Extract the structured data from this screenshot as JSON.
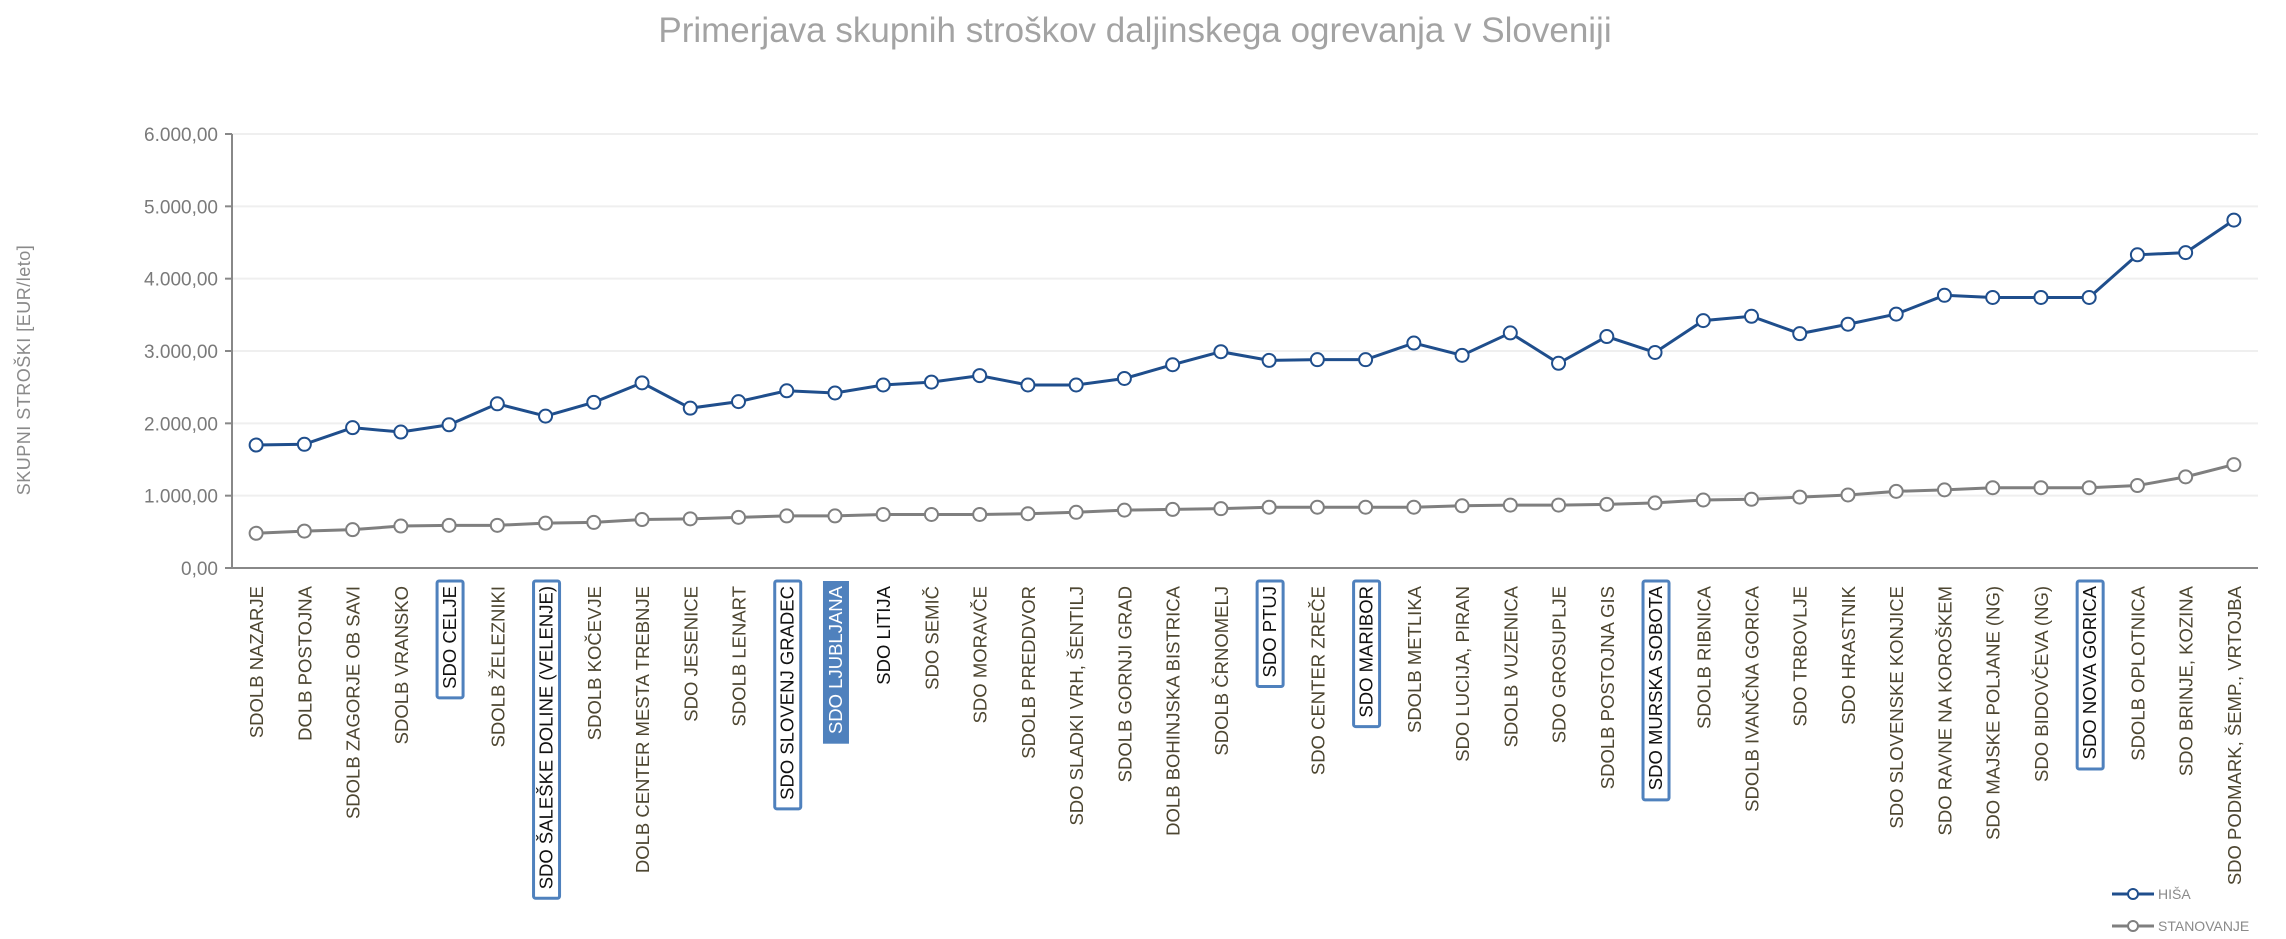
{
  "chart_data": {
    "type": "line",
    "title": "Primerjava skupnih stroškov daljinskega ogrevanja v Sloveniji",
    "xlabel": "",
    "ylabel": "SKUPNI STROŠKI [EUR/leto]",
    "ylim": [
      0,
      6000
    ],
    "yticks": [
      0,
      1000,
      2000,
      3000,
      4000,
      5000,
      6000
    ],
    "ytick_labels": [
      "0,00",
      "1.000,00",
      "2.000,00",
      "3.000,00",
      "4.000,00",
      "5.000,00",
      "6.000,00"
    ],
    "grid": true,
    "legend_position": "bottom-right",
    "categories": [
      "SDOLB NAZARJE",
      "DOLB POSTOJNA",
      "SDOLB ZAGORJE OB SAVI",
      "SDOLB VRANSKO",
      "SDO CELJE",
      "SDOLB ŽELEZNIKI",
      "SDO ŠALEŠKE DOLINE (VELENJE)",
      "SDOLB KOČEVJE",
      "DOLB CENTER MESTA TREBNJE",
      "SDO JESENICE",
      "SDOLB LENART",
      "SDO SLOVENJ GRADEC",
      "SDO LJUBLJANA",
      "SDO LITIJA",
      "SDO SEMIČ",
      "SDO MORAVČE",
      "SDOLB PREDDVOR",
      "SDO SLADKI VRH, ŠENTILJ",
      "SDOLB GORNJI GRAD",
      "DOLB BOHINJSKA BISTRICA",
      "SDOLB ČRNOMELJ",
      "SDO PTUJ",
      "SDO CENTER ZREČE",
      "SDO MARIBOR",
      "SDOLB METLIKA",
      "SDO LUCIJA, PIRAN",
      "SDOLB VUZENICA",
      "SDO GROSUPLJE",
      "SDOLB POSTOJNA GIS",
      "SDO MURSKA SOBOTA",
      "SDOLB RIBNICA",
      "SDOLB IVANČNA GORICA",
      "SDO TRBOVLJE",
      "SDO HRASTNIK",
      "SDO SLOVENSKE KONJICE",
      "SDO RAVNE NA KOROŠKEM",
      "SDO MAJSKE POLJANE  (NG)",
      "SDO BIDOVČEVA (NG)",
      "SDO NOVA GORICA",
      "SDOLB OPLOTNICA",
      "SDO BRINJE, KOZINA",
      "SDO PODMARK, ŠEMP., VRTOJBA"
    ],
    "highlighted_boxed": [
      "SDO CELJE",
      "SDO ŠALEŠKE DOLINE (VELENJE)",
      "SDO SLOVENJ GRADEC",
      "SDO PTUJ",
      "SDO MARIBOR",
      "SDO MURSKA SOBOTA",
      "SDO NOVA GORICA"
    ],
    "highlighted_filled": [
      "SDO LJUBLJANA"
    ],
    "highlighted_plain": [
      "SDO LITIJA"
    ],
    "series": [
      {
        "name": "HIŠA",
        "color": "#1f4e8c",
        "values": [
          1700,
          1710,
          1940,
          1880,
          1980,
          2270,
          2100,
          2290,
          2560,
          2210,
          2300,
          2450,
          2420,
          2530,
          2570,
          2660,
          2530,
          2530,
          2620,
          2810,
          2990,
          2870,
          2880,
          2880,
          3110,
          2940,
          3250,
          2830,
          3200,
          2980,
          3420,
          3480,
          3240,
          3370,
          3510,
          3770,
          3740,
          3740,
          3740,
          4330,
          4360,
          4810
        ]
      },
      {
        "name": "STANOVANJE",
        "color": "#7f7f7f",
        "values": [
          480,
          510,
          530,
          580,
          590,
          590,
          620,
          630,
          670,
          680,
          700,
          720,
          720,
          740,
          740,
          740,
          750,
          770,
          800,
          810,
          820,
          840,
          840,
          840,
          840,
          860,
          870,
          870,
          880,
          900,
          940,
          950,
          980,
          1010,
          1060,
          1080,
          1110,
          1110,
          1110,
          1140,
          1260,
          1430
        ]
      }
    ],
    "highlight_color": "#4f81bd"
  }
}
